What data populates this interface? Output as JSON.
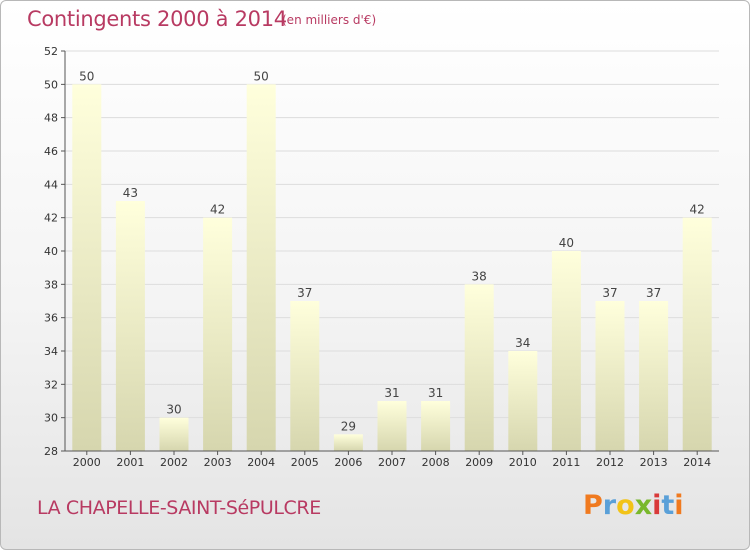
{
  "chart_data": {
    "type": "bar",
    "title": "Contingents 2000 à 2014",
    "subtitle": "(en milliers d'€)",
    "categories": [
      "2000",
      "2001",
      "2002",
      "2003",
      "2004",
      "2005",
      "2006",
      "2007",
      "2008",
      "2009",
      "2010",
      "2011",
      "2012",
      "2013",
      "2014"
    ],
    "values": [
      50,
      43,
      30,
      42,
      50,
      37,
      29,
      31,
      31,
      38,
      34,
      40,
      37,
      37,
      42
    ],
    "ylim": [
      28,
      52
    ],
    "yticks": [
      28,
      30,
      32,
      34,
      36,
      38,
      40,
      42,
      44,
      46,
      48,
      50,
      52
    ],
    "grid": true,
    "legend": "none"
  },
  "footer": {
    "commune": "LA CHAPELLE-SAINT-SéPULCRE"
  },
  "brand": {
    "text": "Proxiti",
    "letter_colors": [
      "#f07a1f",
      "#5aa0d8",
      "#f2c318",
      "#79b82c",
      "#d93a3a",
      "#5aa0d8",
      "#f07a1f"
    ]
  },
  "colors": {
    "title": "#b83a62",
    "bar_top": "#ffffdc",
    "bar_bottom": "#d6d6ae",
    "grid": "#dddddd"
  }
}
